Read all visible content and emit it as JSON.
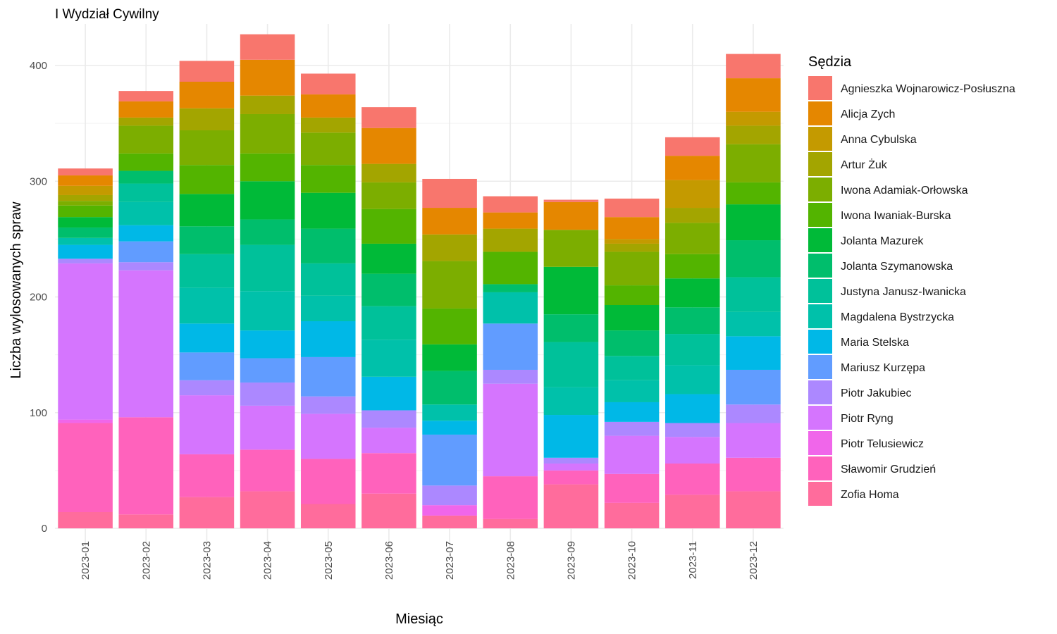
{
  "chart_data": {
    "type": "bar",
    "stacked": true,
    "title": "I Wydział Cywilny",
    "xlabel": "Miesiąc",
    "ylabel": "Liczba wylosowanych spraw",
    "ylim": [
      0,
      430
    ],
    "yticks": [
      0,
      100,
      200,
      300,
      400
    ],
    "grid": true,
    "legend_position": "right",
    "legend_title": "Sędzia",
    "categories": [
      "2023-01",
      "2023-02",
      "2023-03",
      "2023-04",
      "2023-05",
      "2023-06",
      "2023-07",
      "2023-08",
      "2023-09",
      "2023-10",
      "2023-11",
      "2023-12"
    ],
    "series": [
      {
        "name": "Zofia Homa",
        "color": "#FF6C9C",
        "values": [
          14,
          12,
          27,
          32,
          21,
          30,
          11,
          8,
          38,
          22,
          29,
          32
        ]
      },
      {
        "name": "Sławomir Grudzień",
        "color": "#FF62BC",
        "values": [
          77,
          84,
          37,
          36,
          39,
          35,
          0,
          37,
          12,
          25,
          27,
          29
        ]
      },
      {
        "name": "Piotr Telusiewicz",
        "color": "#F066EA",
        "values": [
          3,
          0,
          0,
          0,
          0,
          0,
          9,
          0,
          0,
          0,
          0,
          0
        ]
      },
      {
        "name": "Piotr Ryng",
        "color": "#D575FE",
        "values": [
          135,
          127,
          51,
          38,
          39,
          22,
          0,
          80,
          6,
          33,
          23,
          30
        ]
      },
      {
        "name": "Piotr Jakubiec",
        "color": "#AC88FF",
        "values": [
          4,
          7,
          13,
          20,
          15,
          15,
          17,
          12,
          5,
          12,
          12,
          16
        ]
      },
      {
        "name": "Mariusz Kurzępa",
        "color": "#619CFF",
        "values": [
          0,
          18,
          24,
          21,
          34,
          0,
          44,
          40,
          0,
          0,
          0,
          30
        ]
      },
      {
        "name": "Maria Stelska",
        "color": "#00B8E7",
        "values": [
          12,
          14,
          25,
          24,
          31,
          29,
          12,
          0,
          37,
          17,
          25,
          29
        ]
      },
      {
        "name": "Magdalena Bystrzycka",
        "color": "#00C1AA",
        "values": [
          6,
          20,
          31,
          34,
          22,
          32,
          14,
          27,
          24,
          19,
          25,
          21
        ]
      },
      {
        "name": "Justyna Janusz-Iwanicka",
        "color": "#00C19A",
        "values": [
          0,
          16,
          29,
          40,
          28,
          29,
          0,
          0,
          39,
          21,
          27,
          30
        ]
      },
      {
        "name": "Jolanta Szymanowska",
        "color": "#00BE6C",
        "values": [
          9,
          11,
          24,
          22,
          30,
          28,
          29,
          7,
          24,
          22,
          23,
          32
        ]
      },
      {
        "name": "Jolanta Mazurek",
        "color": "#00BA38",
        "values": [
          9,
          0,
          28,
          33,
          31,
          26,
          23,
          0,
          41,
          22,
          25,
          31
        ]
      },
      {
        "name": "Iwona Iwaniak-Burska",
        "color": "#53B400",
        "values": [
          10,
          15,
          25,
          24,
          24,
          30,
          31,
          28,
          0,
          17,
          21,
          19
        ]
      },
      {
        "name": "Iwona Adamiak-Orłowska",
        "color": "#7CAE00",
        "values": [
          4,
          24,
          30,
          34,
          28,
          23,
          41,
          0,
          32,
          29,
          27,
          33
        ]
      },
      {
        "name": "Artur Żuk",
        "color": "#A3A500",
        "values": [
          5,
          7,
          19,
          16,
          13,
          16,
          23,
          20,
          0,
          7,
          13,
          16
        ]
      },
      {
        "name": "Anna Cybulska",
        "color": "#C49A00",
        "values": [
          8,
          0,
          0,
          0,
          0,
          0,
          0,
          0,
          0,
          4,
          24,
          12
        ]
      },
      {
        "name": "Alicja Zych",
        "color": "#E58700",
        "values": [
          9,
          14,
          23,
          31,
          20,
          31,
          23,
          14,
          24,
          19,
          21,
          29
        ]
      },
      {
        "name": "Agnieszka Wojnarowicz-Posłuszna",
        "color": "#F8766D",
        "values": [
          6,
          9,
          18,
          22,
          18,
          18,
          25,
          14,
          2,
          16,
          16,
          21
        ]
      }
    ]
  }
}
